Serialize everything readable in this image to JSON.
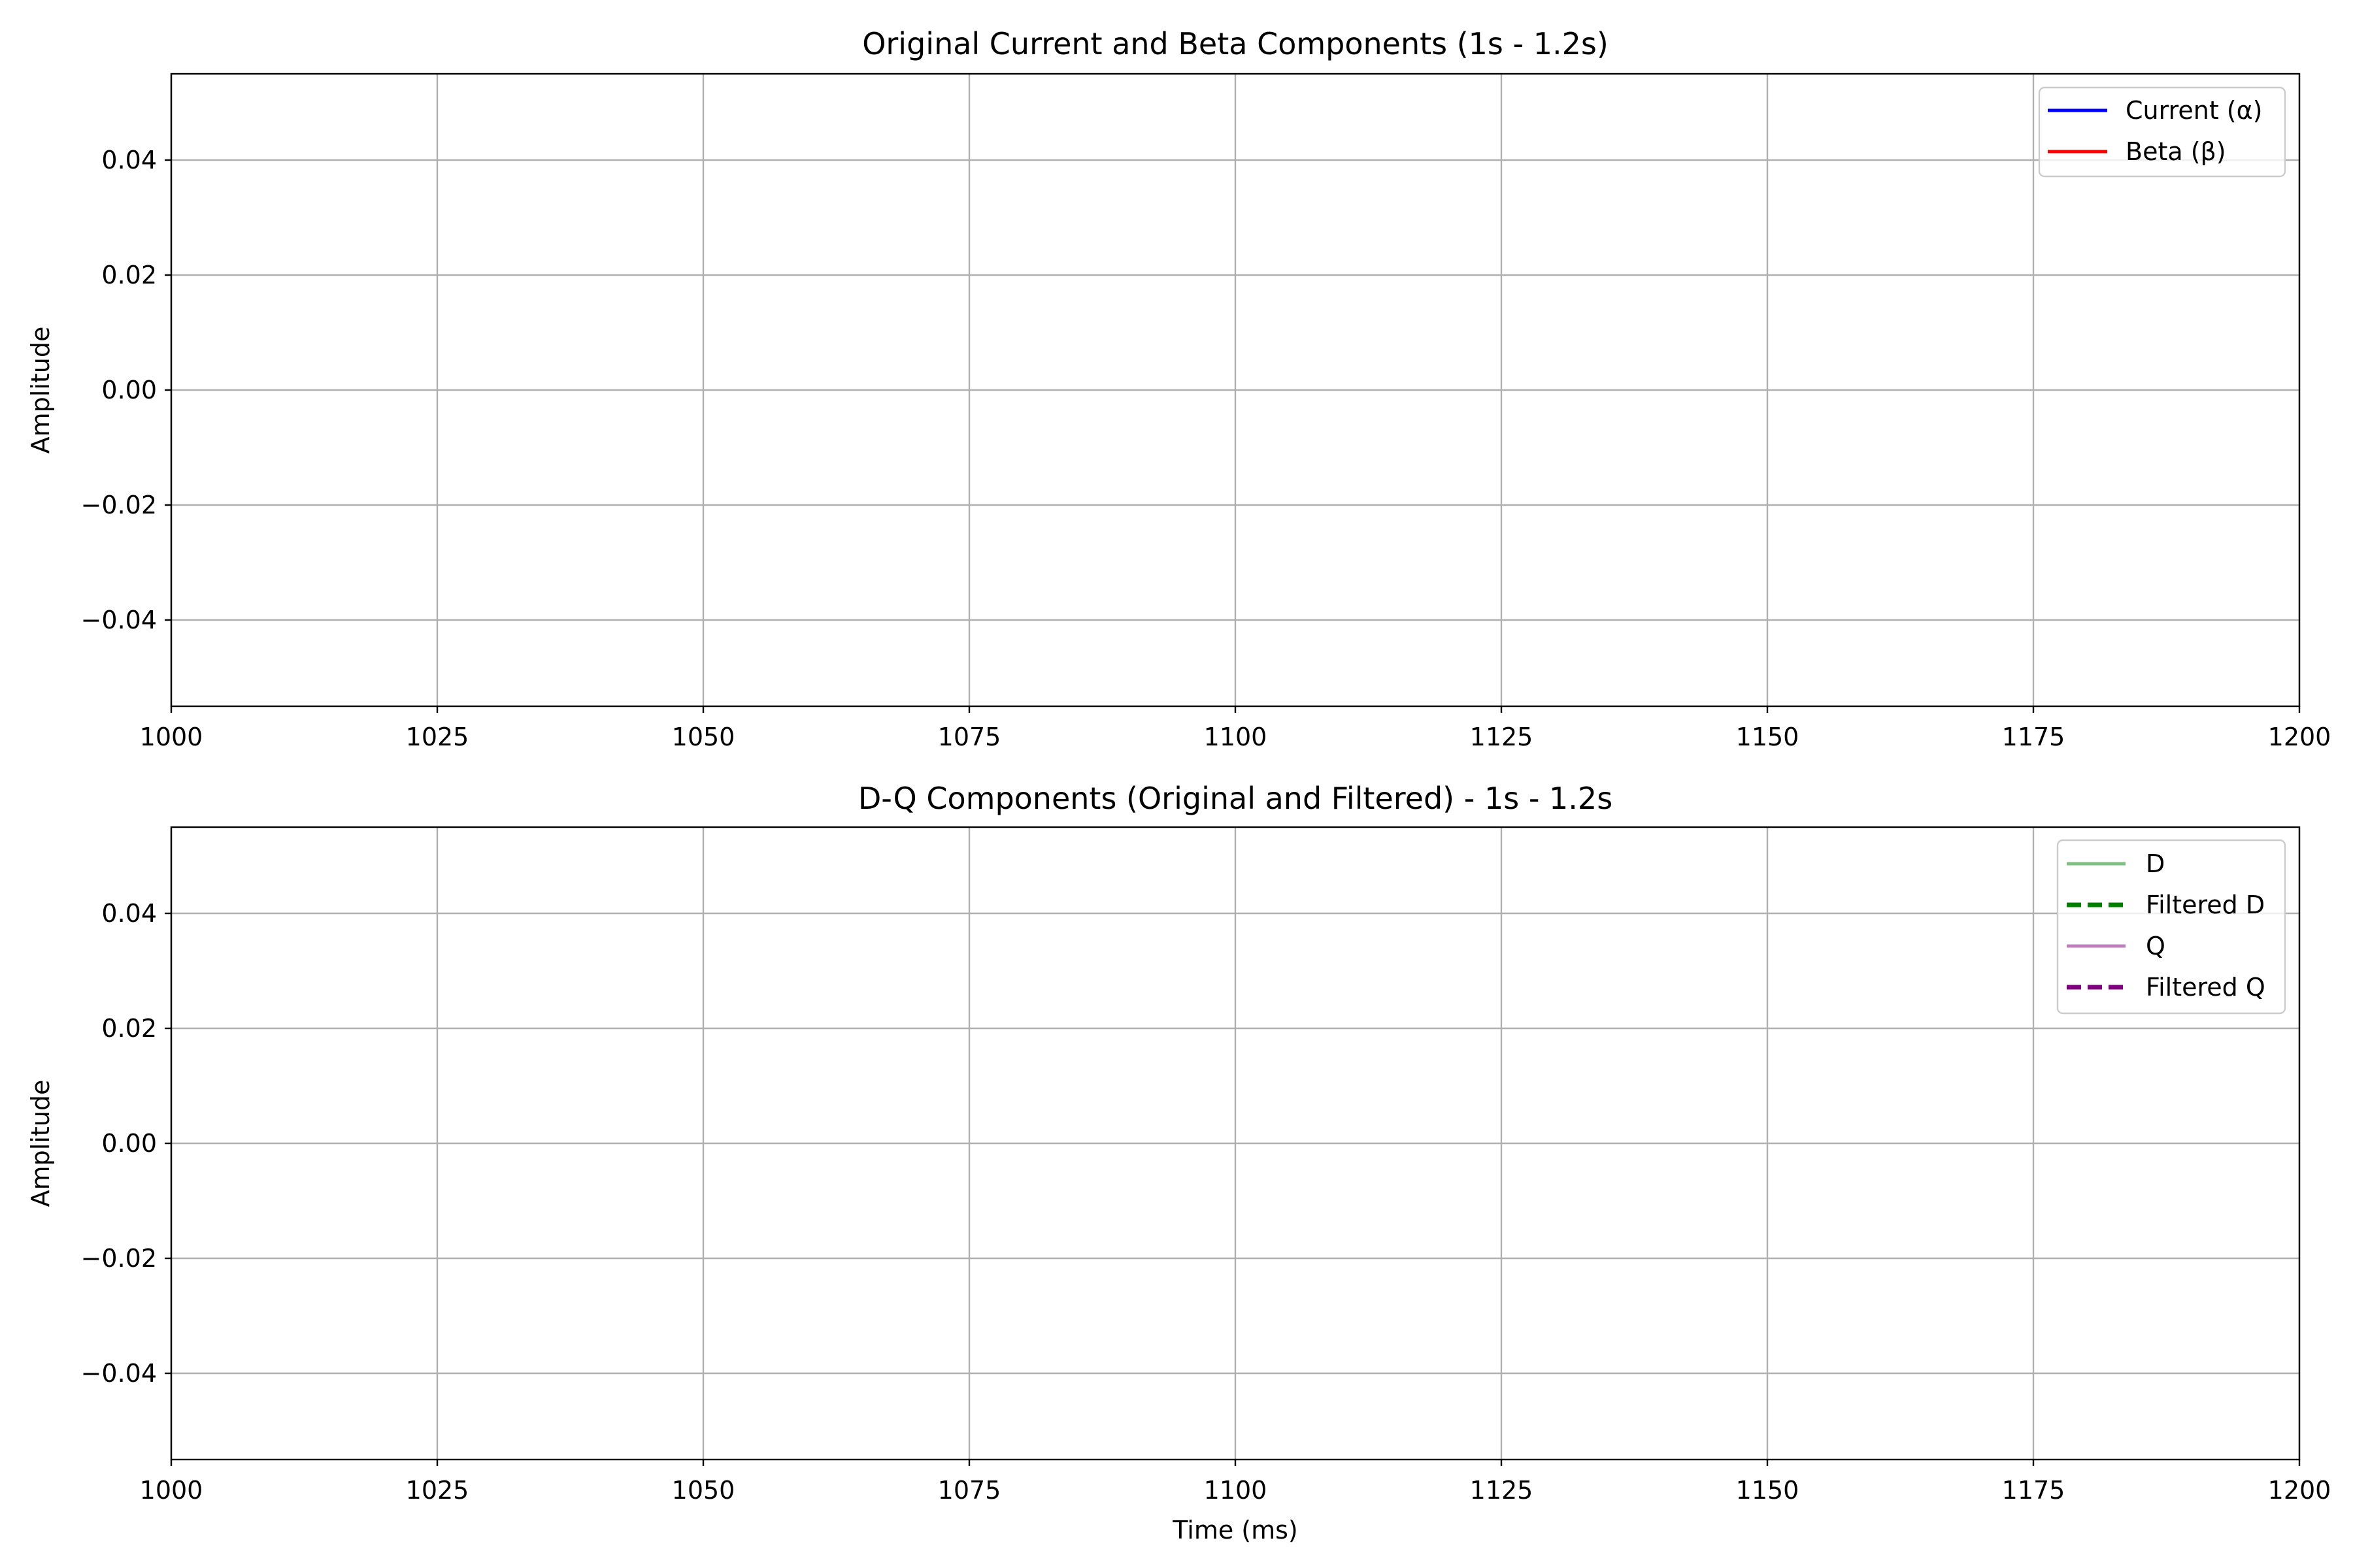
{
  "chart_data": [
    {
      "type": "line",
      "title": "Original Current and Beta Components (1s - 1.2s)",
      "xlabel": "",
      "ylabel": "Amplitude",
      "xlim": [
        1000,
        1200
      ],
      "ylim": [
        -0.055,
        0.055
      ],
      "x_ticks": [
        1000,
        1025,
        1050,
        1075,
        1100,
        1125,
        1150,
        1175,
        1200
      ],
      "x_tick_labels": [
        "1000",
        "1025",
        "1050",
        "1075",
        "1100",
        "1125",
        "1150",
        "1175",
        "1200"
      ],
      "y_ticks": [
        0.04,
        0.02,
        0.0,
        -0.02,
        -0.04
      ],
      "y_tick_labels": [
        "0.04",
        "0.02",
        "0.00",
        "−0.02",
        "−0.04"
      ],
      "grid": true,
      "legend_position": "top-right",
      "series": [
        {
          "name": "Current (α)",
          "color": "#0000ff",
          "style": "solid",
          "values": []
        },
        {
          "name": "Beta (β)",
          "color": "#ff0000",
          "style": "solid",
          "values": []
        }
      ]
    },
    {
      "type": "line",
      "title": "D-Q Components (Original and Filtered) - 1s - 1.2s",
      "xlabel": "Time (ms)",
      "ylabel": "Amplitude",
      "xlim": [
        1000,
        1200
      ],
      "ylim": [
        -0.055,
        0.055
      ],
      "x_ticks": [
        1000,
        1025,
        1050,
        1075,
        1100,
        1125,
        1150,
        1175,
        1200
      ],
      "x_tick_labels": [
        "1000",
        "1025",
        "1050",
        "1075",
        "1100",
        "1125",
        "1150",
        "1175",
        "1200"
      ],
      "y_ticks": [
        0.04,
        0.02,
        0.0,
        -0.02,
        -0.04
      ],
      "y_tick_labels": [
        "0.04",
        "0.02",
        "0.00",
        "−0.02",
        "−0.04"
      ],
      "grid": true,
      "legend_position": "top-right",
      "series": [
        {
          "name": "D",
          "color": "#7fbf7f",
          "style": "solid",
          "values": []
        },
        {
          "name": "Filtered D",
          "color": "#008000",
          "style": "dashed",
          "values": []
        },
        {
          "name": "Q",
          "color": "#bf7fbf",
          "style": "solid",
          "values": []
        },
        {
          "name": "Filtered Q",
          "color": "#800080",
          "style": "dashed",
          "values": []
        }
      ]
    }
  ]
}
